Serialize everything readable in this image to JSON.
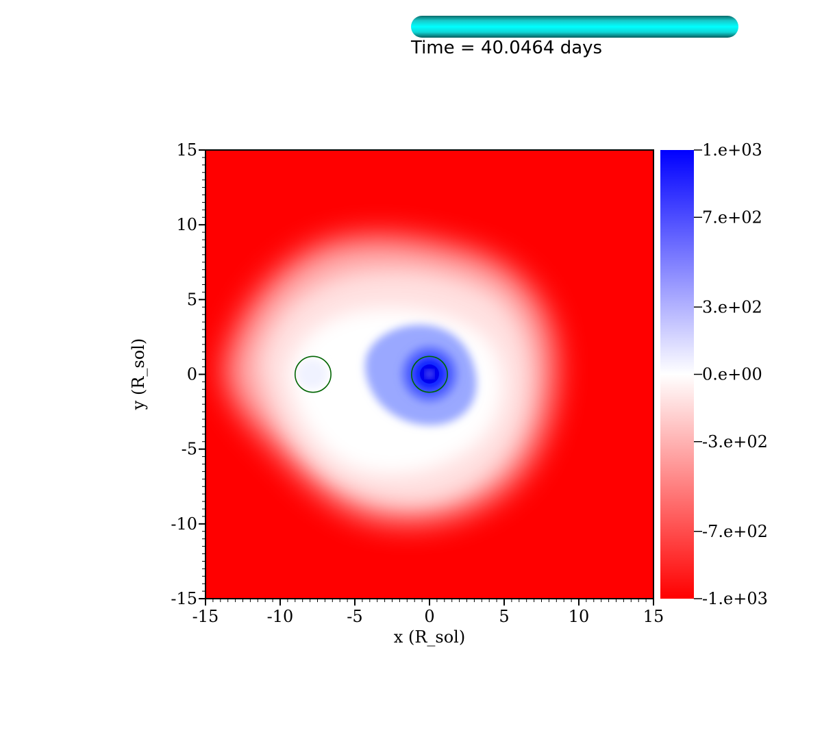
{
  "header": {
    "time_label": "Time = 40.0464 days",
    "progress_fraction": 1.0,
    "progress_color": "#00ffff"
  },
  "chart_data": {
    "type": "heatmap",
    "title": "",
    "xlabel": "x (R_sol)",
    "ylabel": "y (R_sol)",
    "xlim": [
      -15,
      15
    ],
    "ylim": [
      -15,
      15
    ],
    "x_ticks": [
      -15,
      -10,
      -5,
      0,
      5,
      10,
      15
    ],
    "x_tick_labels": [
      "-15",
      "-10",
      "-5",
      "0",
      "5",
      "10",
      "15"
    ],
    "y_ticks": [
      15,
      10,
      5,
      0,
      -5,
      -10,
      -15
    ],
    "y_tick_labels": [
      "15",
      "10",
      "5",
      "0",
      "-5",
      "-10",
      "-15"
    ],
    "colorbar": {
      "range": [
        -1000,
        1000
      ],
      "colors": {
        "min": "#ff0000",
        "mid": "#ffffff",
        "max": "#0000ff"
      },
      "ticks": [
        1000,
        700,
        300,
        0,
        -300,
        -700,
        -1000
      ],
      "tick_labels": [
        "1.e+03",
        "7.e+02",
        "3.e+02",
        "0.e+00",
        "-3.e+02",
        "-7.e+02",
        "-1.e+03"
      ]
    },
    "markers": [
      {
        "name": "companion-circle",
        "x": -7.8,
        "y": 0,
        "r": 1.2,
        "color": "#006400"
      },
      {
        "name": "core-circle",
        "x": 0,
        "y": 0,
        "r": 1.2,
        "color": "#006400"
      }
    ]
  }
}
